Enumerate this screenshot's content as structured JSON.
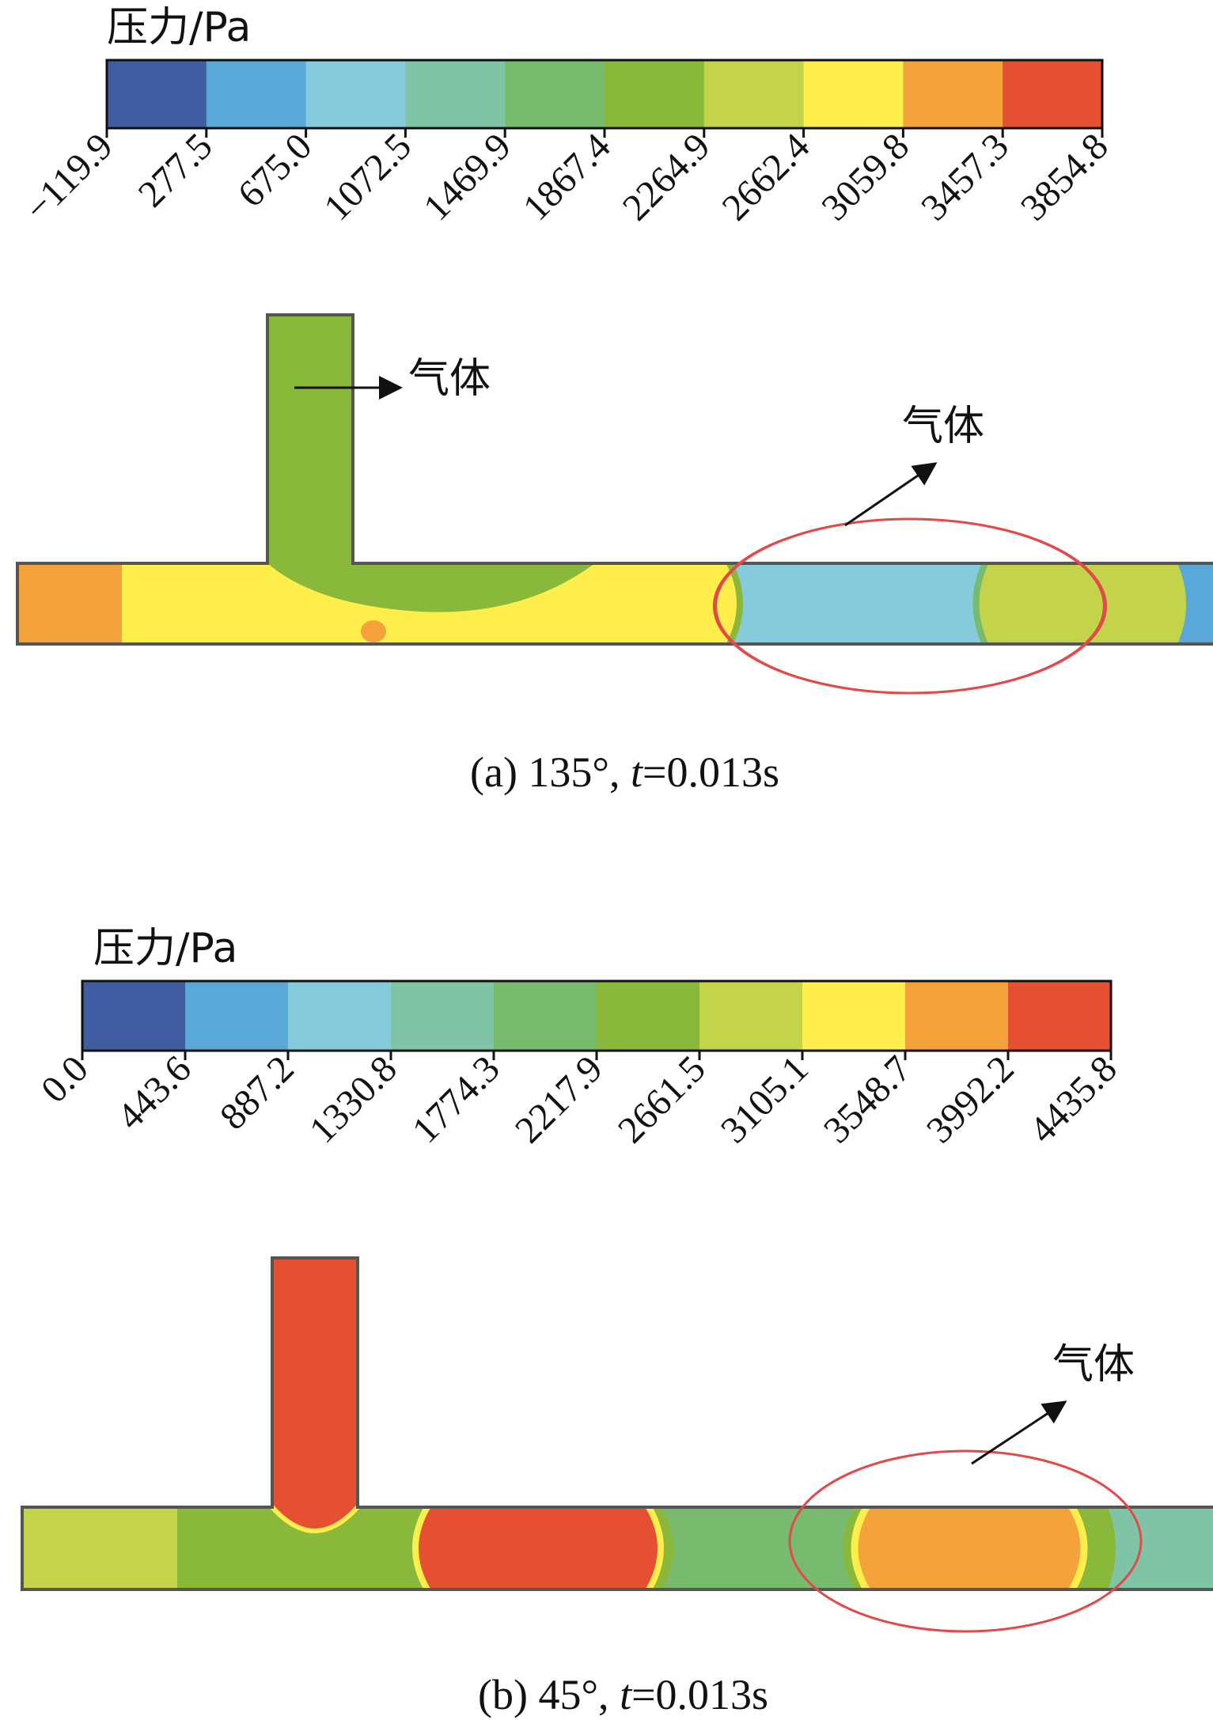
{
  "panel_a": {
    "legend_title": "压力/Pa",
    "ticks": [
      "−119.9",
      "277.5",
      "675.0",
      "1072.5",
      "1469.9",
      "1867.4",
      "2264.9",
      "2662.4",
      "3059.8",
      "3457.3",
      "3854.8"
    ],
    "annotation_1": "气体",
    "annotation_2": "气体",
    "caption_prefix": "(a) 135°, ",
    "caption_var": "t",
    "caption_suffix": "=0.013s"
  },
  "panel_b": {
    "legend_title": "压力/Pa",
    "ticks": [
      "0.0",
      "443.6",
      "887.2",
      "1330.8",
      "1774.3",
      "2217.9",
      "2661.5",
      "3105.1",
      "3548.7",
      "3992.2",
      "4435.8"
    ],
    "annotation_1": "气体",
    "caption_prefix": "(b) 45°, ",
    "caption_var": "t",
    "caption_suffix": "=0.013s"
  },
  "colors": {
    "palette": [
      "#3f5da0",
      "#5aa8d8",
      "#86cbdc",
      "#80c4a8",
      "#79bb6e",
      "#8ab83b",
      "#c4d44a",
      "#fdee4c",
      "#f4a23a",
      "#e55033"
    ],
    "ellipse": "#e24a4a",
    "pipe_outline": "#555555"
  }
}
